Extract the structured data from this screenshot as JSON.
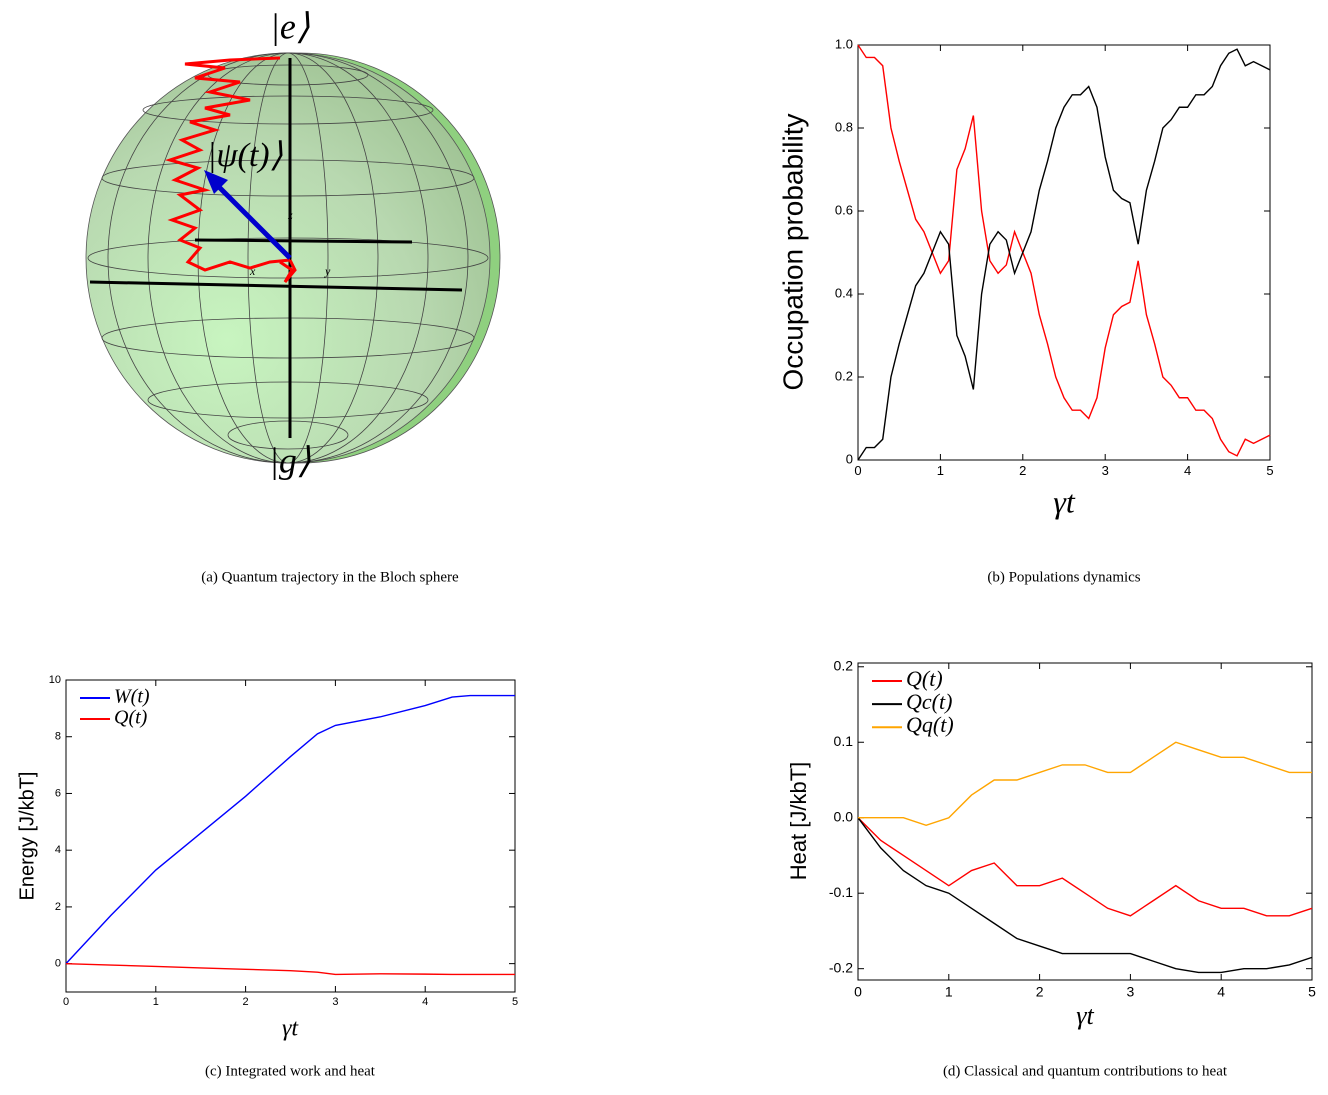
{
  "chart_data": [
    {
      "type": "bloch",
      "caption": "(a) Quantum trajectory in the Bloch sphere",
      "state_labels": {
        "top": "|e⟩",
        "bottom": "|g⟩",
        "vector": "|ψ(t)⟩"
      },
      "axis_labels": [
        "x",
        "y",
        "z"
      ]
    },
    {
      "type": "line",
      "caption": "(b) Populations dynamics",
      "xlabel": "γt",
      "ylabel": "Occupation probability",
      "xlim": [
        0,
        5
      ],
      "ylim": [
        0,
        1
      ],
      "xticks": [
        0,
        1,
        2,
        3,
        4,
        5
      ],
      "yticks": [
        0,
        0.2,
        0.4,
        0.6,
        0.8,
        {
          "value": 1,
          "label": "1.0"
        }
      ],
      "x": [
        0,
        0.1,
        0.2,
        0.3,
        0.4,
        0.5,
        0.6,
        0.7,
        0.8,
        0.9,
        1,
        1.1,
        1.2,
        1.3,
        1.4,
        1.5,
        1.6,
        1.7,
        1.8,
        1.9,
        2,
        2.1,
        2.2,
        2.3,
        2.4,
        2.5,
        2.6,
        2.7,
        2.8,
        2.9,
        3,
        3.1,
        3.2,
        3.3,
        3.4,
        3.5,
        3.6,
        3.7,
        3.8,
        3.9,
        4,
        4.1,
        4.2,
        4.3,
        4.4,
        4.5,
        4.6,
        4.7,
        4.8,
        4.9,
        5
      ],
      "series": [
        {
          "color": "#ff0000",
          "values": [
            1.0,
            0.97,
            0.97,
            0.95,
            0.8,
            0.72,
            0.65,
            0.58,
            0.55,
            0.5,
            0.45,
            0.48,
            0.7,
            0.75,
            0.83,
            0.6,
            0.48,
            0.45,
            0.47,
            0.55,
            0.5,
            0.45,
            0.35,
            0.28,
            0.2,
            0.15,
            0.12,
            0.12,
            0.1,
            0.15,
            0.27,
            0.35,
            0.37,
            0.38,
            0.48,
            0.35,
            0.28,
            0.2,
            0.18,
            0.15,
            0.15,
            0.12,
            0.12,
            0.1,
            0.05,
            0.02,
            0.01,
            0.05,
            0.04,
            0.05,
            0.06
          ]
        },
        {
          "color": "#000000",
          "values": [
            0,
            0.03,
            0.03,
            0.05,
            0.2,
            0.28,
            0.35,
            0.42,
            0.45,
            0.5,
            0.55,
            0.52,
            0.3,
            0.25,
            0.17,
            0.4,
            0.52,
            0.55,
            0.53,
            0.45,
            0.5,
            0.55,
            0.65,
            0.72,
            0.8,
            0.85,
            0.88,
            0.88,
            0.9,
            0.85,
            0.73,
            0.65,
            0.63,
            0.62,
            0.52,
            0.65,
            0.72,
            0.8,
            0.82,
            0.85,
            0.85,
            0.88,
            0.88,
            0.9,
            0.95,
            0.98,
            0.99,
            0.95,
            0.96,
            0.95,
            0.94
          ]
        }
      ]
    },
    {
      "type": "line",
      "caption": "(c) Integrated work and heat",
      "xlabel": "γt",
      "ylabel": "Energy [J/kbT]",
      "xlim": [
        0,
        5
      ],
      "ylim": [
        -1,
        10
      ],
      "xticks": [
        0,
        1,
        2,
        3,
        4,
        5
      ],
      "yticks": [
        0,
        2,
        4,
        6,
        8,
        10
      ],
      "legend": "upper left",
      "x": [
        0,
        0.5,
        1,
        1.5,
        2,
        2.5,
        2.8,
        3,
        3.5,
        4,
        4.3,
        4.5,
        5
      ],
      "series": [
        {
          "name": "W(t)",
          "color": "#0000ff",
          "values": [
            0,
            1.7,
            3.3,
            4.6,
            5.9,
            7.3,
            8.1,
            8.4,
            8.7,
            9.1,
            9.4,
            9.45,
            9.45
          ]
        },
        {
          "name": "Q(t)",
          "color": "#ff0000",
          "values": [
            0,
            -0.05,
            -0.1,
            -0.15,
            -0.2,
            -0.25,
            -0.3,
            -0.38,
            -0.36,
            -0.37,
            -0.38,
            -0.38,
            -0.38
          ]
        }
      ]
    },
    {
      "type": "line",
      "caption": "(d) Classical and quantum contributions to heat",
      "xlabel": "γt",
      "ylabel": "Heat [J/kbT]",
      "xlim": [
        0,
        5
      ],
      "ylim": [
        -0.215,
        0.205
      ],
      "xticks": [
        0,
        1,
        2,
        3,
        4,
        5
      ],
      "yticks": [
        -0.2,
        -0.1,
        {
          "value": 0,
          "label": "0.0"
        },
        0.1,
        0.2
      ],
      "legend": "upper left",
      "x": [
        0,
        0.25,
        0.5,
        0.75,
        1,
        1.25,
        1.5,
        1.75,
        2,
        2.25,
        2.5,
        2.75,
        3,
        3.25,
        3.5,
        3.75,
        4,
        4.25,
        4.5,
        4.75,
        5
      ],
      "series": [
        {
          "name": "Q(t)",
          "color": "#ff0000",
          "values": [
            0,
            -0.03,
            -0.05,
            -0.07,
            -0.09,
            -0.07,
            -0.06,
            -0.09,
            -0.09,
            -0.08,
            -0.1,
            -0.12,
            -0.13,
            -0.11,
            -0.09,
            -0.11,
            -0.12,
            -0.12,
            -0.13,
            -0.13,
            -0.12
          ]
        },
        {
          "name": "Qc(t)",
          "color": "#000000",
          "values": [
            0,
            -0.04,
            -0.07,
            -0.09,
            -0.1,
            -0.12,
            -0.14,
            -0.16,
            -0.17,
            -0.18,
            -0.18,
            -0.18,
            -0.18,
            -0.19,
            -0.2,
            -0.205,
            -0.205,
            -0.2,
            -0.2,
            -0.195,
            -0.185
          ]
        },
        {
          "name": "Qq(t)",
          "color": "#ffa500",
          "values": [
            0,
            0.0,
            0.0,
            -0.01,
            0.0,
            0.03,
            0.05,
            0.05,
            0.06,
            0.07,
            0.07,
            0.06,
            0.06,
            0.08,
            0.1,
            0.09,
            0.08,
            0.08,
            0.07,
            0.06,
            0.06
          ]
        }
      ]
    }
  ]
}
